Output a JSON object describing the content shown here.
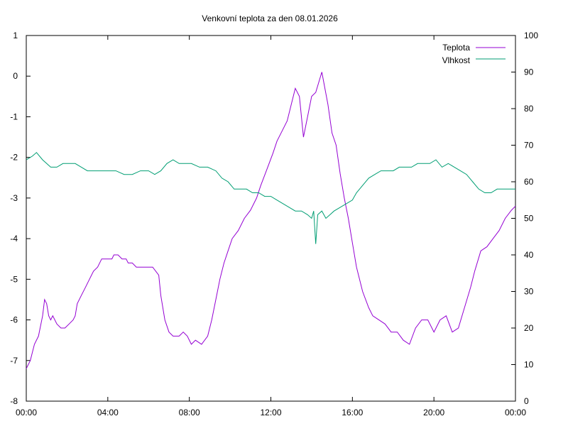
{
  "chart_data": {
    "type": "line",
    "title": "Venkovní teplota za den 08.01.2026",
    "x_ticks": [
      "00:00",
      "04:00",
      "08:00",
      "12:00",
      "16:00",
      "20:00",
      "00:00"
    ],
    "xlim_hours": [
      0,
      24
    ],
    "y_left": {
      "ylim": [
        -8,
        1
      ],
      "ticks": [
        "1",
        "0",
        "-1",
        "-2",
        "-3",
        "-4",
        "-5",
        "-6",
        "-7",
        "-8"
      ]
    },
    "y_right": {
      "ylim": [
        0,
        100
      ],
      "ticks": [
        "100",
        "90",
        "80",
        "70",
        "60",
        "50",
        "40",
        "30",
        "20",
        "10",
        "0"
      ]
    },
    "grid": false,
    "legend_position": "top-right",
    "series": [
      {
        "name": "Teplota",
        "axis": "left",
        "color": "#9400d3",
        "points": [
          [
            0,
            -7.2
          ],
          [
            0.2,
            -7.0
          ],
          [
            0.3,
            -6.8
          ],
          [
            0.4,
            -6.6
          ],
          [
            0.6,
            -6.4
          ],
          [
            0.8,
            -5.9
          ],
          [
            0.9,
            -5.5
          ],
          [
            1.0,
            -5.6
          ],
          [
            1.1,
            -5.9
          ],
          [
            1.2,
            -6.0
          ],
          [
            1.3,
            -5.9
          ],
          [
            1.5,
            -6.1
          ],
          [
            1.7,
            -6.2
          ],
          [
            1.9,
            -6.2
          ],
          [
            2.1,
            -6.1
          ],
          [
            2.3,
            -6.0
          ],
          [
            2.4,
            -5.9
          ],
          [
            2.5,
            -5.6
          ],
          [
            2.7,
            -5.4
          ],
          [
            2.9,
            -5.2
          ],
          [
            3.1,
            -5.0
          ],
          [
            3.3,
            -4.8
          ],
          [
            3.5,
            -4.7
          ],
          [
            3.7,
            -4.5
          ],
          [
            4.0,
            -4.5
          ],
          [
            4.2,
            -4.5
          ],
          [
            4.3,
            -4.4
          ],
          [
            4.5,
            -4.4
          ],
          [
            4.7,
            -4.5
          ],
          [
            4.9,
            -4.5
          ],
          [
            5.0,
            -4.6
          ],
          [
            5.2,
            -4.6
          ],
          [
            5.4,
            -4.7
          ],
          [
            5.7,
            -4.7
          ],
          [
            6.0,
            -4.7
          ],
          [
            6.2,
            -4.7
          ],
          [
            6.5,
            -4.9
          ],
          [
            6.6,
            -5.4
          ],
          [
            6.8,
            -6.0
          ],
          [
            7.0,
            -6.3
          ],
          [
            7.2,
            -6.4
          ],
          [
            7.5,
            -6.4
          ],
          [
            7.7,
            -6.3
          ],
          [
            7.9,
            -6.4
          ],
          [
            8.1,
            -6.6
          ],
          [
            8.3,
            -6.5
          ],
          [
            8.6,
            -6.6
          ],
          [
            8.9,
            -6.4
          ],
          [
            9.1,
            -6.0
          ],
          [
            9.3,
            -5.5
          ],
          [
            9.5,
            -5.0
          ],
          [
            9.7,
            -4.6
          ],
          [
            9.9,
            -4.3
          ],
          [
            10.1,
            -4.0
          ],
          [
            10.4,
            -3.8
          ],
          [
            10.7,
            -3.5
          ],
          [
            11.0,
            -3.3
          ],
          [
            11.3,
            -3.0
          ],
          [
            11.5,
            -2.7
          ],
          [
            11.8,
            -2.3
          ],
          [
            12.1,
            -1.9
          ],
          [
            12.3,
            -1.6
          ],
          [
            12.5,
            -1.4
          ],
          [
            12.8,
            -1.1
          ],
          [
            13.0,
            -0.7
          ],
          [
            13.2,
            -0.3
          ],
          [
            13.4,
            -0.5
          ],
          [
            13.6,
            -1.5
          ],
          [
            13.8,
            -1.0
          ],
          [
            14.0,
            -0.5
          ],
          [
            14.2,
            -0.4
          ],
          [
            14.5,
            0.1
          ],
          [
            14.8,
            -0.7
          ],
          [
            15.0,
            -1.4
          ],
          [
            15.2,
            -1.7
          ],
          [
            15.4,
            -2.4
          ],
          [
            15.6,
            -3.0
          ],
          [
            15.8,
            -3.5
          ],
          [
            16.0,
            -4.1
          ],
          [
            16.2,
            -4.7
          ],
          [
            16.5,
            -5.3
          ],
          [
            16.8,
            -5.7
          ],
          [
            17.0,
            -5.9
          ],
          [
            17.3,
            -6.0
          ],
          [
            17.6,
            -6.1
          ],
          [
            17.9,
            -6.3
          ],
          [
            18.2,
            -6.3
          ],
          [
            18.5,
            -6.5
          ],
          [
            18.8,
            -6.6
          ],
          [
            19.1,
            -6.2
          ],
          [
            19.4,
            -6.0
          ],
          [
            19.7,
            -6.0
          ],
          [
            20.0,
            -6.3
          ],
          [
            20.3,
            -6.0
          ],
          [
            20.6,
            -5.9
          ],
          [
            20.9,
            -6.3
          ],
          [
            21.2,
            -6.2
          ],
          [
            21.5,
            -5.7
          ],
          [
            21.8,
            -5.2
          ],
          [
            22.0,
            -4.8
          ],
          [
            22.3,
            -4.3
          ],
          [
            22.6,
            -4.2
          ],
          [
            22.9,
            -4.0
          ],
          [
            23.2,
            -3.8
          ],
          [
            23.5,
            -3.5
          ],
          [
            23.8,
            -3.3
          ],
          [
            24.0,
            -3.2
          ]
        ]
      },
      {
        "name": "Vlhkost",
        "axis": "right",
        "color": "#009e73",
        "points": [
          [
            0,
            66
          ],
          [
            0.3,
            67
          ],
          [
            0.5,
            68
          ],
          [
            0.8,
            66
          ],
          [
            1.0,
            65
          ],
          [
            1.2,
            64
          ],
          [
            1.5,
            64
          ],
          [
            1.8,
            65
          ],
          [
            2.1,
            65
          ],
          [
            2.4,
            65
          ],
          [
            2.7,
            64
          ],
          [
            3.0,
            63
          ],
          [
            3.3,
            63
          ],
          [
            3.6,
            63
          ],
          [
            4.0,
            63
          ],
          [
            4.4,
            63
          ],
          [
            4.8,
            62
          ],
          [
            5.2,
            62
          ],
          [
            5.6,
            63
          ],
          [
            6.0,
            63
          ],
          [
            6.3,
            62
          ],
          [
            6.6,
            63
          ],
          [
            6.9,
            65
          ],
          [
            7.2,
            66
          ],
          [
            7.5,
            65
          ],
          [
            7.8,
            65
          ],
          [
            8.1,
            65
          ],
          [
            8.5,
            64
          ],
          [
            8.9,
            64
          ],
          [
            9.3,
            63
          ],
          [
            9.6,
            61
          ],
          [
            9.9,
            60
          ],
          [
            10.2,
            58
          ],
          [
            10.5,
            58
          ],
          [
            10.8,
            58
          ],
          [
            11.1,
            57
          ],
          [
            11.4,
            57
          ],
          [
            11.7,
            56
          ],
          [
            12.0,
            56
          ],
          [
            12.3,
            55
          ],
          [
            12.6,
            54
          ],
          [
            12.9,
            53
          ],
          [
            13.2,
            52
          ],
          [
            13.5,
            52
          ],
          [
            13.8,
            51
          ],
          [
            14.0,
            50
          ],
          [
            14.1,
            52
          ],
          [
            14.2,
            43
          ],
          [
            14.3,
            51
          ],
          [
            14.5,
            52
          ],
          [
            14.7,
            50
          ],
          [
            14.9,
            51
          ],
          [
            15.1,
            52
          ],
          [
            15.4,
            53
          ],
          [
            15.7,
            54
          ],
          [
            16.0,
            55
          ],
          [
            16.2,
            57
          ],
          [
            16.5,
            59
          ],
          [
            16.8,
            61
          ],
          [
            17.1,
            62
          ],
          [
            17.4,
            63
          ],
          [
            17.7,
            63
          ],
          [
            18.0,
            63
          ],
          [
            18.3,
            64
          ],
          [
            18.6,
            64
          ],
          [
            18.9,
            64
          ],
          [
            19.2,
            65
          ],
          [
            19.5,
            65
          ],
          [
            19.8,
            65
          ],
          [
            20.1,
            66
          ],
          [
            20.4,
            64
          ],
          [
            20.7,
            65
          ],
          [
            21.0,
            64
          ],
          [
            21.3,
            63
          ],
          [
            21.6,
            62
          ],
          [
            21.9,
            60
          ],
          [
            22.2,
            58
          ],
          [
            22.5,
            57
          ],
          [
            22.8,
            57
          ],
          [
            23.1,
            58
          ],
          [
            23.4,
            58
          ],
          [
            23.7,
            58
          ],
          [
            24.0,
            58
          ]
        ]
      }
    ]
  }
}
